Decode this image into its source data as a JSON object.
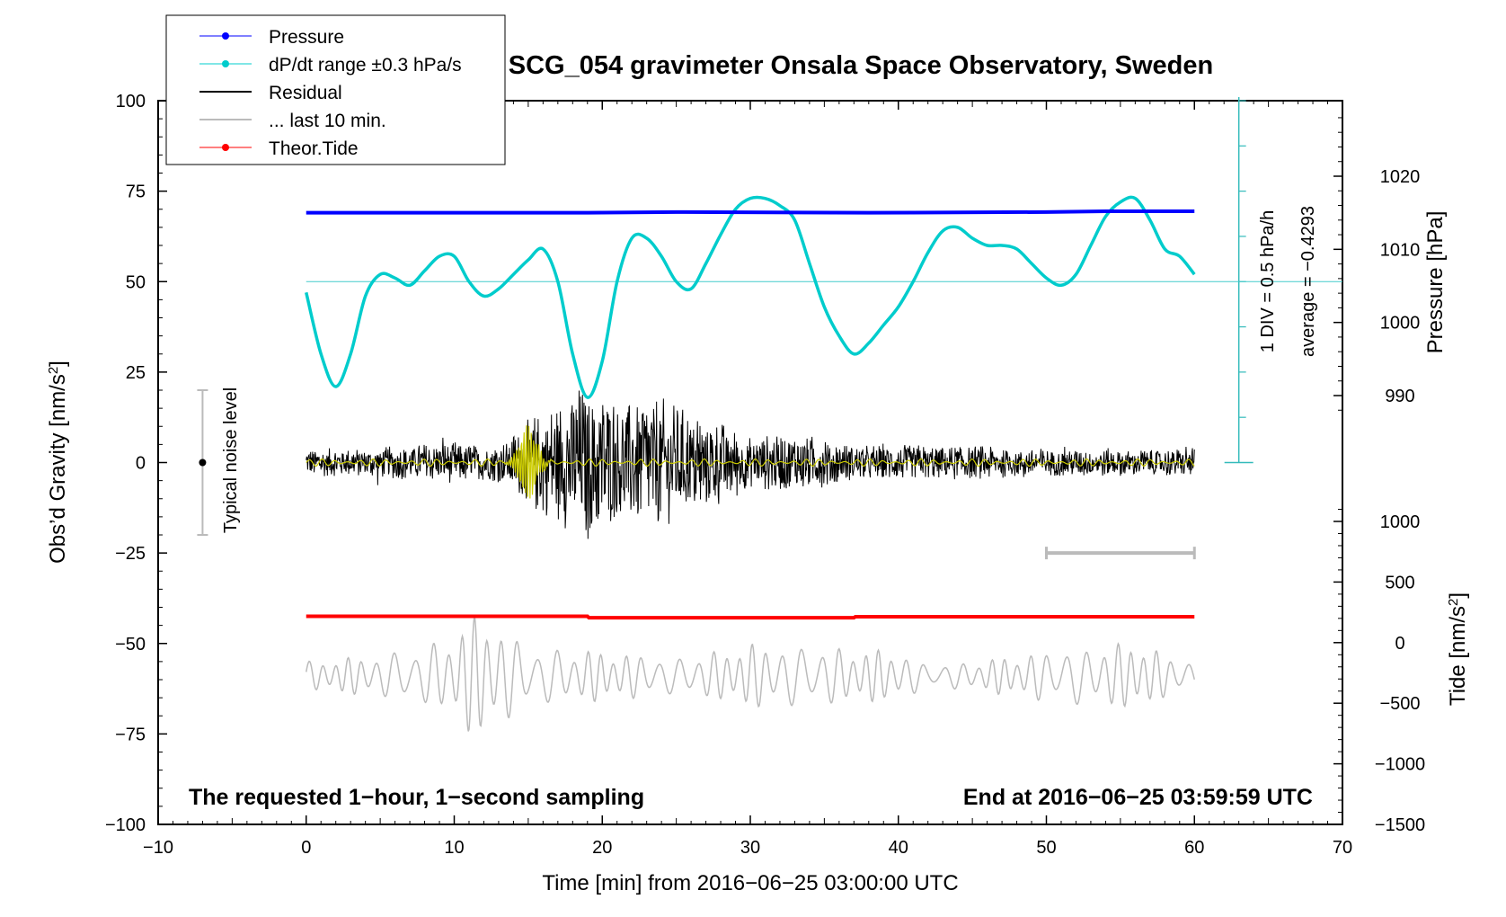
{
  "chart_data": {
    "type": "line",
    "title": "SCG_054 gravimeter Onsala Space Observatory, Sweden",
    "xlabel": "Time [min] from 2016−06−25 03:00:00 UTC",
    "ylabel": "Obs’d Gravity [nm/s²]",
    "ylabel_main": "Obs’d Gravity [nm/s",
    "ylabel_sup": "2",
    "ylabel_end": "]",
    "xlim": [
      -10,
      70
    ],
    "ylim": [
      -100,
      100
    ],
    "x_ticks": [
      -10,
      0,
      10,
      20,
      30,
      40,
      50,
      60,
      70
    ],
    "x_tick_labels": [
      "−10",
      "0",
      "10",
      "20",
      "30",
      "40",
      "50",
      "60",
      "70"
    ],
    "y_ticks": [
      -100,
      -75,
      -50,
      -25,
      0,
      25,
      50,
      75,
      100
    ],
    "y_tick_labels": [
      "−100",
      "−75",
      "−50",
      "−25",
      "0",
      "25",
      "50",
      "75",
      "100"
    ],
    "right_pressure_axis": {
      "label": "Pressure [hPa]",
      "range": [
        970,
        1030
      ],
      "ticks": [
        990,
        1000,
        1010,
        1020
      ],
      "tick_labels": [
        "990",
        "1000",
        "1010",
        "1020"
      ]
    },
    "right_tide_axis": {
      "label_main": "Tide [nm/s",
      "label_sup": "2",
      "label_end": "]",
      "range": [
        -1500,
        1500
      ],
      "ticks": [
        -1500,
        -1000,
        -500,
        0,
        500,
        1000
      ],
      "tick_labels": [
        "−1500",
        "−1000",
        "−500",
        "0",
        "500",
        "1000"
      ]
    },
    "dpdt_scale": {
      "label1": "1 DIV = 0.5 hPa/h",
      "label2": "average = −0.4293"
    },
    "noise_bar": {
      "label": "Typical noise level",
      "x": -7,
      "center": 0,
      "half_range": 20
    },
    "last10_bar": {
      "x_start": 50,
      "x_end": 60,
      "y": -25
    },
    "footer_left": "The requested 1−hour, 1−second sampling",
    "footer_right": "End at 2016−06−25 03:59:59 UTC",
    "legend": [
      {
        "label": "Pressure",
        "color": "#0000ff",
        "marker": true
      },
      {
        "label": "dP/dt range ±0.3 hPa/s",
        "color": "#00cccc",
        "marker": true
      },
      {
        "label": "Residual",
        "color": "#000000",
        "marker": false
      },
      {
        "label": "... last 10 min.",
        "color": "#bbbbbb",
        "marker": false
      },
      {
        "label": "Theor.Tide",
        "color": "#ff0000",
        "marker": true
      }
    ],
    "series": [
      {
        "name": "Pressure",
        "color": "#0000ff",
        "axis": "pressure",
        "x": [
          0,
          19,
          25,
          38,
          50,
          54,
          60
        ],
        "y": [
          1015.0,
          1015.0,
          1015.1,
          1015.0,
          1015.1,
          1015.2,
          1015.2
        ]
      },
      {
        "name": "dP/dt range ±0.3 hPa/s",
        "color": "#00cccc",
        "axis": "gravity_display",
        "x": [
          0,
          1,
          2,
          3,
          4,
          5,
          6,
          7,
          8,
          9,
          10,
          11,
          12,
          13,
          14,
          15,
          16,
          17,
          18,
          19,
          20,
          21,
          22,
          23,
          24,
          25,
          26,
          27,
          28,
          29,
          30,
          31,
          32,
          33,
          34,
          35,
          36,
          37,
          38,
          39,
          40,
          41,
          42,
          43,
          44,
          45,
          46,
          47,
          48,
          49,
          50,
          51,
          52,
          53,
          54,
          55,
          56,
          57,
          58,
          59,
          60
        ],
        "y": [
          47,
          30,
          21,
          30,
          46,
          52,
          51,
          49,
          53,
          57,
          57,
          50,
          46,
          48,
          52,
          56,
          59,
          50,
          30,
          18,
          28,
          50,
          62,
          62,
          57,
          50,
          48,
          55,
          63,
          70,
          73,
          73,
          71,
          67,
          55,
          43,
          35,
          30,
          33,
          38,
          43,
          50,
          58,
          64,
          65,
          62,
          60,
          60,
          59,
          55,
          51,
          49,
          52,
          60,
          68,
          72,
          73,
          67,
          59,
          57,
          52
        ]
      },
      {
        "name": "Residual",
        "color": "#000000",
        "axis": "gravity",
        "x_start": 0,
        "x_end": 60,
        "n_samples": 1800,
        "envelope_x": [
          0,
          4,
          7,
          10,
          12,
          13.5,
          14.5,
          15.5,
          17,
          18.5,
          20,
          21,
          22,
          23,
          25,
          26.5,
          28,
          30,
          33,
          35,
          37,
          40,
          45,
          48,
          50,
          55,
          60
        ],
        "envelope_a": [
          4,
          4,
          5,
          6,
          5,
          6,
          11,
          14,
          17,
          22,
          24,
          18,
          17,
          21,
          16,
          14,
          12,
          7,
          9,
          7,
          5,
          5,
          5,
          4,
          4,
          4,
          4
        ]
      },
      {
        "name": "Residual (smoothed)",
        "color": "#cccc00",
        "axis": "gravity",
        "x_start": 0,
        "x_end": 60,
        "burst_center": 15,
        "burst_width": 0.8,
        "burst_amp": 10,
        "base_amp": 1
      },
      {
        "name": "Theor.Tide",
        "color": "#ff0000",
        "axis": "gravity",
        "x": [
          0,
          19,
          19.1,
          37,
          37.1,
          60
        ],
        "y": [
          -42.5,
          -42.5,
          -42.9,
          -42.9,
          -42.6,
          -42.6
        ]
      },
      {
        "name": "... last 10 min.",
        "color": "#bbbbbb",
        "axis": "gravity",
        "x_start": 0,
        "x_end": 60,
        "n_samples": 1200,
        "center": -59,
        "envelope_x": [
          0,
          5,
          8,
          10,
          11,
          12,
          13,
          15,
          20,
          25,
          28,
          30,
          35,
          40,
          42,
          45,
          50,
          55,
          56,
          58,
          60
        ],
        "envelope_a": [
          4,
          6,
          8,
          12,
          16,
          18,
          14,
          8,
          7,
          5,
          7,
          9,
          8,
          7,
          3,
          4,
          7,
          9,
          10,
          6,
          4
        ]
      }
    ]
  }
}
